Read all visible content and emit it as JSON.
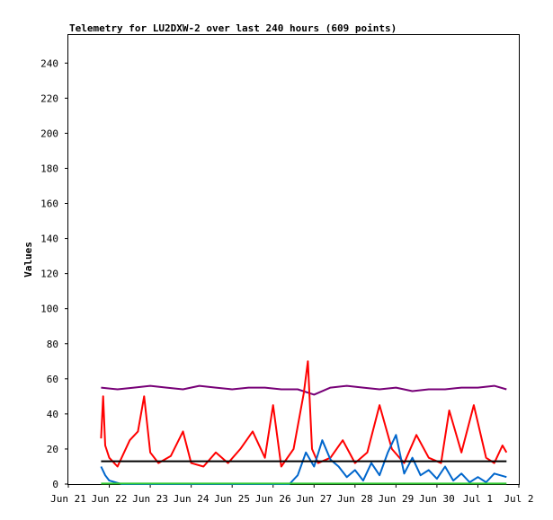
{
  "chart_data": {
    "type": "line",
    "title": "Telemetry for LU2DXW-2 over last 240 hours (609 points)",
    "xlabel": "",
    "ylabel": "Values",
    "ylim": [
      0,
      256
    ],
    "yticks": [
      0,
      20,
      40,
      60,
      80,
      100,
      120,
      140,
      160,
      180,
      200,
      220,
      240
    ],
    "x_range": [
      "Jun 21",
      "Jul 2"
    ],
    "xticks": [
      "Jun 21",
      "Jun 22",
      "Jun 23",
      "Jun 24",
      "Jun 25",
      "Jun 26",
      "Jun 27",
      "Jun 28",
      "Jun 29",
      "Jun 30",
      "Jul 1",
      "Jul 2"
    ],
    "grid": false,
    "legend": "none",
    "series": [
      {
        "color": "#770077",
        "x": [
          0.8,
          1.2,
          1.6,
          2.0,
          2.4,
          2.8,
          3.2,
          3.6,
          4.0,
          4.4,
          4.8,
          5.2,
          5.6,
          6.0,
          6.4,
          6.8,
          7.2,
          7.6,
          8.0,
          8.4,
          8.8,
          9.2,
          9.6,
          10.0,
          10.4,
          10.7
        ],
        "values": [
          55,
          54,
          55,
          56,
          55,
          54,
          56,
          55,
          54,
          55,
          55,
          54,
          54,
          51,
          55,
          56,
          55,
          54,
          55,
          53,
          54,
          54,
          55,
          55,
          56,
          54
        ]
      },
      {
        "color": "#ff0000",
        "x": [
          0.8,
          0.85,
          0.9,
          1.0,
          1.2,
          1.5,
          1.7,
          1.85,
          2.0,
          2.2,
          2.5,
          2.8,
          3.0,
          3.3,
          3.6,
          3.9,
          4.2,
          4.5,
          4.8,
          5.0,
          5.2,
          5.5,
          5.75,
          5.85,
          5.95,
          6.1,
          6.4,
          6.7,
          7.0,
          7.3,
          7.6,
          7.9,
          8.2,
          8.5,
          8.8,
          9.1,
          9.3,
          9.6,
          9.9,
          10.2,
          10.4,
          10.6,
          10.7
        ],
        "values": [
          26,
          50,
          22,
          15,
          10,
          25,
          30,
          50,
          18,
          12,
          16,
          30,
          12,
          10,
          18,
          12,
          20,
          30,
          15,
          45,
          10,
          20,
          52,
          70,
          20,
          12,
          15,
          25,
          12,
          18,
          45,
          20,
          12,
          28,
          15,
          12,
          42,
          18,
          45,
          15,
          12,
          22,
          18
        ]
      },
      {
        "color": "#0066cc",
        "x": [
          0.8,
          0.9,
          1.0,
          1.3,
          2.0,
          3.0,
          4.0,
          5.0,
          5.4,
          5.6,
          5.8,
          6.0,
          6.2,
          6.4,
          6.6,
          6.8,
          7.0,
          7.2,
          7.4,
          7.6,
          7.8,
          8.0,
          8.2,
          8.4,
          8.6,
          8.8,
          9.0,
          9.2,
          9.4,
          9.6,
          9.8,
          10.0,
          10.2,
          10.4,
          10.7
        ],
        "values": [
          10,
          5,
          2,
          0,
          0,
          0,
          0,
          0,
          0,
          5,
          18,
          10,
          25,
          14,
          10,
          4,
          8,
          2,
          12,
          5,
          18,
          28,
          6,
          15,
          5,
          8,
          3,
          10,
          2,
          6,
          1,
          4,
          1,
          6,
          4
        ]
      },
      {
        "color": "#000000",
        "x": [
          0.8,
          10.7
        ],
        "values": [
          13,
          13
        ]
      },
      {
        "color": "#33cc33",
        "x": [
          0.8,
          10.7
        ],
        "values": [
          0.3,
          0.3
        ]
      }
    ]
  }
}
